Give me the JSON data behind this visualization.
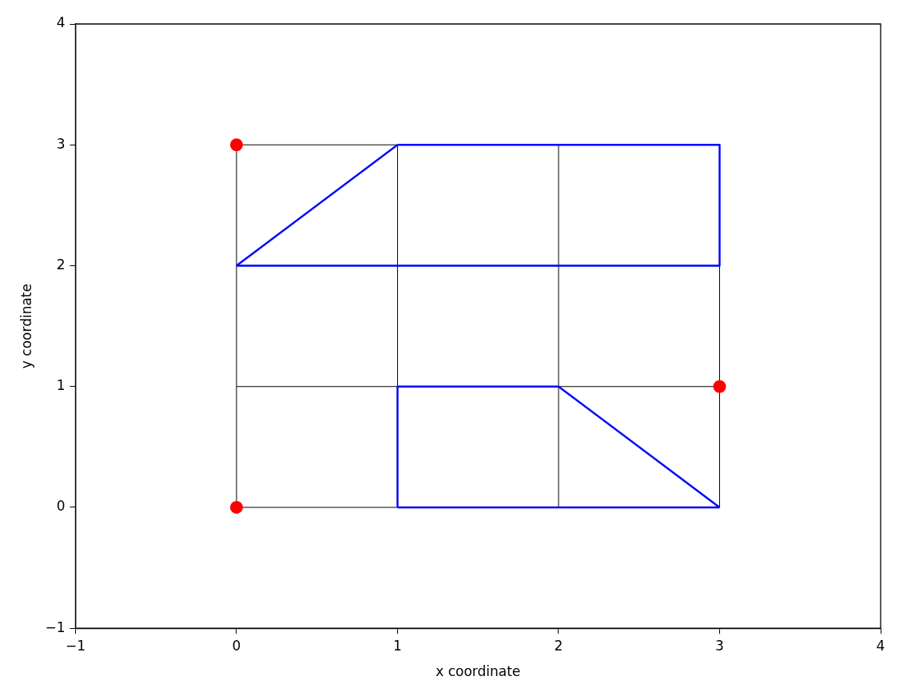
{
  "chart_data": {
    "type": "line",
    "xlabel": "x coordinate",
    "ylabel": "y coordinate",
    "xlim": [
      -1,
      4
    ],
    "ylim": [
      -1,
      4
    ],
    "xticks": [
      {
        "value": -1,
        "label": "−1"
      },
      0,
      1,
      2,
      3,
      4
    ],
    "yticks": [
      {
        "value": -1,
        "label": "−1"
      },
      0,
      1,
      2,
      3,
      4
    ],
    "grid": false,
    "legend": false,
    "marker": "none",
    "line_style": "solid",
    "series": [
      {
        "color": "#000000",
        "x": [
          0,
          0
        ],
        "values": [
          0,
          3
        ]
      },
      {
        "color": "#000000",
        "x": [
          1,
          1
        ],
        "values": [
          1,
          3
        ]
      },
      {
        "color": "#000000",
        "x": [
          2,
          2
        ],
        "values": [
          0,
          3
        ]
      },
      {
        "color": "#000000",
        "x": [
          3,
          3
        ],
        "values": [
          0,
          2
        ]
      },
      {
        "color": "#000000",
        "x": [
          0,
          1
        ],
        "values": [
          0,
          0
        ]
      },
      {
        "color": "#000000",
        "x": [
          0,
          1
        ],
        "values": [
          1,
          1
        ]
      },
      {
        "color": "#000000",
        "x": [
          2,
          3
        ],
        "values": [
          1,
          1
        ]
      },
      {
        "color": "#000000",
        "x": [
          0,
          1
        ],
        "values": [
          3,
          3
        ]
      },
      {
        "color": "#0000ff",
        "x": [
          0,
          1
        ],
        "values": [
          2,
          3
        ]
      },
      {
        "color": "#0000ff",
        "x": [
          1,
          3
        ],
        "values": [
          3,
          3
        ]
      },
      {
        "color": "#0000ff",
        "x": [
          3,
          3
        ],
        "values": [
          3,
          2
        ]
      },
      {
        "color": "#0000ff",
        "x": [
          0,
          3
        ],
        "values": [
          2,
          2
        ]
      },
      {
        "color": "#0000ff",
        "x": [
          1,
          1
        ],
        "values": [
          0,
          1
        ]
      },
      {
        "color": "#0000ff",
        "x": [
          1,
          2
        ],
        "values": [
          1,
          1
        ]
      },
      {
        "color": "#0000ff",
        "x": [
          2,
          3
        ],
        "values": [
          1,
          0
        ]
      },
      {
        "color": "#0000ff",
        "x": [
          1,
          3
        ],
        "values": [
          0,
          0
        ]
      },
      {
        "type": "scatter",
        "color": "#ff0000",
        "marker": "circle",
        "x": [
          0,
          3,
          0
        ],
        "values": [
          3,
          1,
          0
        ]
      }
    ]
  }
}
